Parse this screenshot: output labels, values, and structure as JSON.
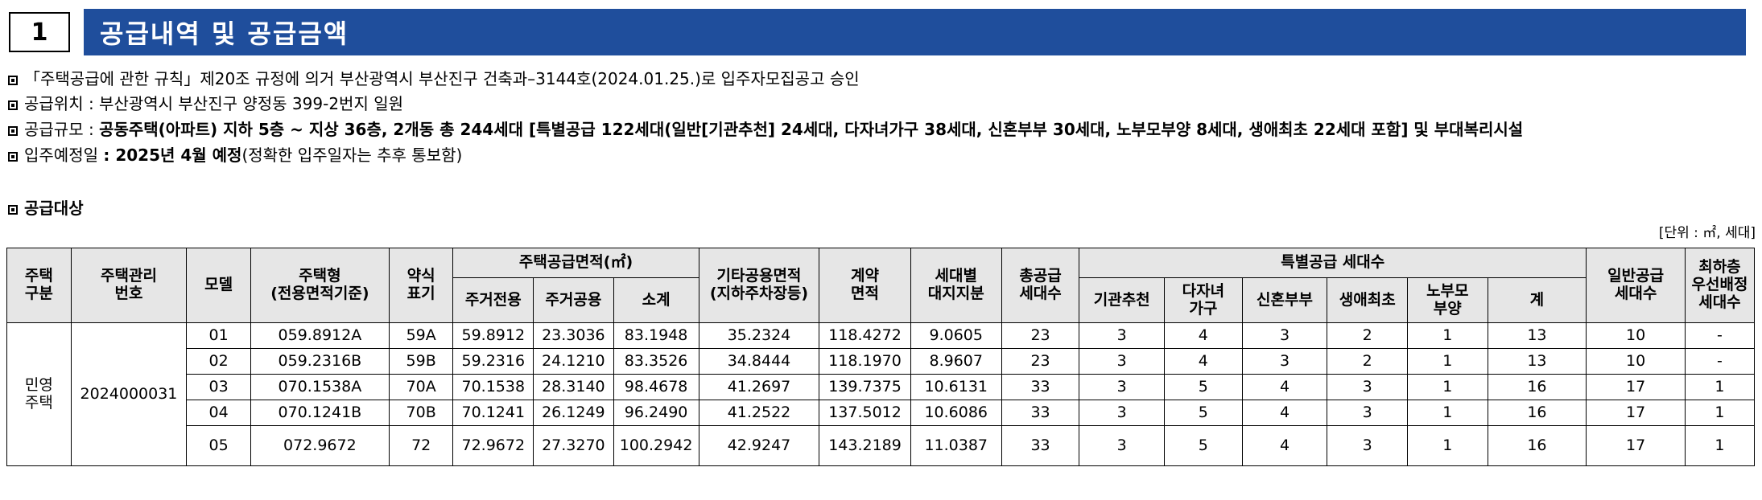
{
  "section": {
    "number": "1",
    "title": "공급내역 및 공급금액"
  },
  "lines": [
    {
      "normal": "「주택공급에 관한 규칙」제20조 규정에 의거 부산광역시 부산진구 건축과–3144호(2024.01.25.)로 입주자모집공고 승인"
    },
    {
      "normal": "공급위치 : 부산광역시 부산진구 양정동 399-2번지 일원"
    },
    {
      "normal": "공급규모 : ",
      "bold": "공동주택(아파트) 지하 5층 ~ 지상 36층, 2개동 총 244세대 [특별공급 122세대(일반[기관추천] 24세대, 다자녀가구 38세대, 신혼부부 30세대, 노부모부양 8세대, 생애최초 22세대 포함] 및 부대복리시설"
    },
    {
      "normal": "입주예정일 ",
      "bold": ": 2025년 4월 예정",
      "tail": "(정확한 입주일자는 추후 통보함)"
    }
  ],
  "subheading": "공급대상",
  "unit": "[단위 : ㎡, 세대]",
  "table": {
    "headers": {
      "type": "주택\n구분",
      "mgmt_no": "주택관리\n번호",
      "model": "모델",
      "housing_type": "주택형\n(전용면적기준)",
      "abbr": "약식\n표기",
      "supply_area": "주택공급면적(㎡)",
      "exclusive": "주거전용",
      "common": "주거공용",
      "subtotal": "소계",
      "other_common": "기타공용면적\n(지하주차장등)",
      "contract_area": "계약\n면적",
      "land_share": "세대별\n대지지분",
      "total_units": "총공급\n세대수",
      "special": "특별공급 세대수",
      "inst": "기관추천",
      "multi_child": "다자녀\n가구",
      "newlywed": "신혼부부",
      "first_time": "생애최초",
      "elderly": "노부모\n부양",
      "sum": "계",
      "general": "일반공급\n세대수",
      "lowest_floor": "최하층\n우선배정\n세대수"
    },
    "group_type": "민영\n주택",
    "group_mgmt_no": "2024000031",
    "rows": [
      {
        "model": "01",
        "type": "059.8912A",
        "abbr": "59A",
        "excl": "59.8912",
        "common": "23.3036",
        "subtotal": "83.1948",
        "other": "35.2324",
        "contract": "118.4272",
        "land": "9.0605",
        "total": "23",
        "inst": "3",
        "multi": "4",
        "newlywed": "3",
        "first": "2",
        "elderly": "1",
        "sum": "13",
        "general": "10",
        "lowest": "-"
      },
      {
        "model": "02",
        "type": "059.2316B",
        "abbr": "59B",
        "excl": "59.2316",
        "common": "24.1210",
        "subtotal": "83.3526",
        "other": "34.8444",
        "contract": "118.1970",
        "land": "8.9607",
        "total": "23",
        "inst": "3",
        "multi": "4",
        "newlywed": "3",
        "first": "2",
        "elderly": "1",
        "sum": "13",
        "general": "10",
        "lowest": "-"
      },
      {
        "model": "03",
        "type": "070.1538A",
        "abbr": "70A",
        "excl": "70.1538",
        "common": "28.3140",
        "subtotal": "98.4678",
        "other": "41.2697",
        "contract": "139.7375",
        "land": "10.6131",
        "total": "33",
        "inst": "3",
        "multi": "5",
        "newlywed": "4",
        "first": "3",
        "elderly": "1",
        "sum": "16",
        "general": "17",
        "lowest": "1"
      },
      {
        "model": "04",
        "type": "070.1241B",
        "abbr": "70B",
        "excl": "70.1241",
        "common": "26.1249",
        "subtotal": "96.2490",
        "other": "41.2522",
        "contract": "137.5012",
        "land": "10.6086",
        "total": "33",
        "inst": "3",
        "multi": "5",
        "newlywed": "4",
        "first": "3",
        "elderly": "1",
        "sum": "16",
        "general": "17",
        "lowest": "1"
      },
      {
        "model": "05",
        "type": "072.9672",
        "abbr": "72",
        "excl": "72.9672",
        "common": "27.3270",
        "subtotal": "100.2942",
        "other": "42.9247",
        "contract": "143.2189",
        "land": "11.0387",
        "total": "33",
        "inst": "3",
        "multi": "5",
        "newlywed": "4",
        "first": "3",
        "elderly": "1",
        "sum": "16",
        "general": "17",
        "lowest": "1"
      }
    ]
  }
}
